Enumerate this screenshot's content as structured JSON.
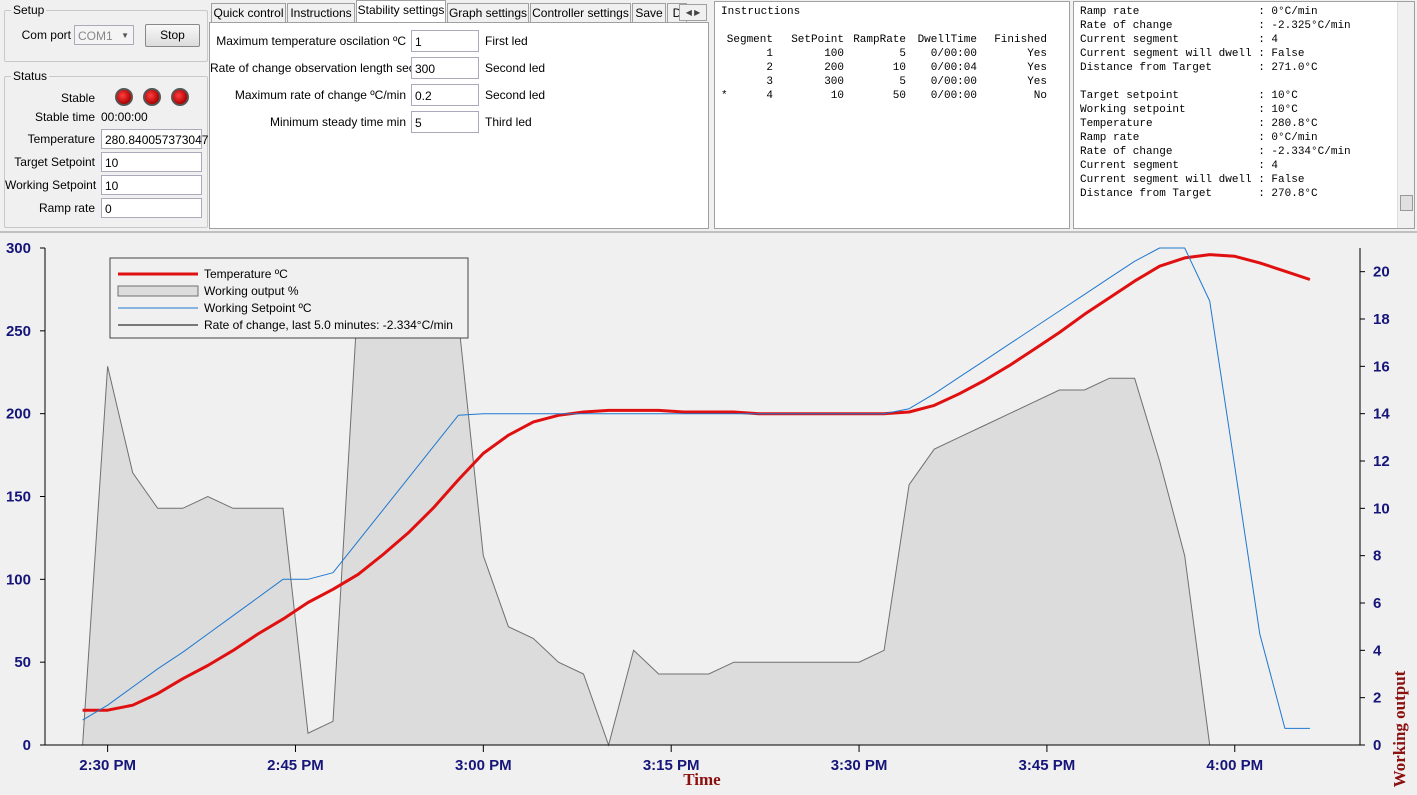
{
  "setup": {
    "title": "Setup",
    "com_port_label": "Com port",
    "com_port": "COM1",
    "button": "Stop"
  },
  "status": {
    "title": "Status",
    "stable_label": "Stable",
    "stable_time_label": "Stable time",
    "stable_time": "00:00:00",
    "fields": [
      {
        "label": "Temperature",
        "value": "280.840057373047"
      },
      {
        "label": "Target Setpoint",
        "value": "10"
      },
      {
        "label": "Working Setpoint",
        "value": "10"
      },
      {
        "label": "Ramp rate",
        "value": "0"
      }
    ]
  },
  "tabs": {
    "items": [
      "Quick control",
      "Instructions",
      "Stability settings",
      "Graph settings",
      "Controller settings",
      "Save",
      "D"
    ],
    "active": 2
  },
  "stability": {
    "rows": [
      {
        "label": "Maximum temperature oscilation ºC",
        "value": "1",
        "note": "First led"
      },
      {
        "label": "Rate of change observation length sec",
        "value": "300",
        "note": "Second led"
      },
      {
        "label": "Maximum rate of change ºC/min",
        "value": "0.2",
        "note": "Second led"
      },
      {
        "label": "Minimum steady time min",
        "value": "5",
        "note": "Third led"
      }
    ]
  },
  "instructions": {
    "title": "Instructions",
    "columns": [
      "Segment",
      "SetPoint",
      "RampRate",
      "DwellTime",
      "Finished"
    ],
    "rows": [
      {
        "cells": [
          1,
          100,
          5,
          "0/00:00",
          "Yes"
        ]
      },
      {
        "cells": [
          2,
          200,
          10,
          "0/00:04",
          "Yes"
        ]
      },
      {
        "cells": [
          3,
          300,
          5,
          "0/00:00",
          "Yes"
        ]
      },
      {
        "marker": "*",
        "cells": [
          4,
          10,
          50,
          "0/00:00",
          "No"
        ]
      }
    ]
  },
  "log": {
    "blocks": [
      [
        "Ramp rate                  : 0°C/min",
        "Rate of change             : -2.325°C/min",
        "Current segment            : 4",
        "Current segment will dwell : False",
        "Distance from Target       : 271.0°C"
      ],
      [
        "Target setpoint            : 10°C",
        "Working setpoint           : 10°C",
        "Temperature                : 280.8°C",
        "Ramp rate                  : 0°C/min",
        "Rate of change             : -2.334°C/min",
        "Current segment            : 4",
        "Current segment will dwell : False",
        "Distance from Target       : 270.8°C"
      ]
    ]
  },
  "chart_data": {
    "type": "line",
    "x_label": "Time",
    "y2_label": "Working output",
    "x": [
      "2:28 PM",
      "2:30 PM",
      "2:32 PM",
      "2:34 PM",
      "2:36 PM",
      "2:38 PM",
      "2:40 PM",
      "2:42 PM",
      "2:44 PM",
      "2:46 PM",
      "2:48 PM",
      "2:50 PM",
      "2:52 PM",
      "2:54 PM",
      "2:56 PM",
      "2:58 PM",
      "3:00 PM",
      "3:02 PM",
      "3:04 PM",
      "3:06 PM",
      "3:08 PM",
      "3:10 PM",
      "3:12 PM",
      "3:14 PM",
      "3:16 PM",
      "3:18 PM",
      "3:20 PM",
      "3:22 PM",
      "3:24 PM",
      "3:26 PM",
      "3:28 PM",
      "3:30 PM",
      "3:32 PM",
      "3:34 PM",
      "3:36 PM",
      "3:38 PM",
      "3:40 PM",
      "3:42 PM",
      "3:44 PM",
      "3:46 PM",
      "3:48 PM",
      "3:50 PM",
      "3:52 PM",
      "3:54 PM",
      "3:56 PM",
      "3:58 PM",
      "4:00 PM",
      "4:02 PM",
      "4:04 PM",
      "4:06 PM"
    ],
    "xlim": [
      "2:25 PM",
      "4:10 PM"
    ],
    "xticks": [
      "2:30 PM",
      "2:45 PM",
      "3:00 PM",
      "3:15 PM",
      "3:30 PM",
      "3:45 PM",
      "4:00 PM"
    ],
    "ylim": [
      0,
      300
    ],
    "yticks": [
      0,
      50,
      100,
      150,
      200,
      250,
      300
    ],
    "y2lim": [
      0,
      21
    ],
    "y2ticks": [
      0,
      2,
      4,
      6,
      8,
      10,
      12,
      14,
      16,
      18,
      20
    ],
    "legend": "top-left",
    "series": [
      {
        "name": "Temperature ºC",
        "color": "#e01010",
        "width": 3,
        "values": [
          21,
          21,
          24,
          31,
          40,
          48,
          57,
          67,
          76,
          86,
          94,
          103,
          115,
          128,
          143,
          160,
          176,
          187,
          195,
          199,
          201,
          202,
          202,
          202,
          201,
          201,
          201,
          200,
          200,
          200,
          200,
          200,
          200,
          201,
          205,
          212,
          220,
          229,
          239,
          249,
          260,
          270,
          280,
          289,
          294,
          296,
          295,
          291,
          286,
          281
        ]
      },
      {
        "name": "Working output %",
        "color": "#707070",
        "fill": "#dcdcdc",
        "area": true,
        "axis": "y2",
        "width": 1,
        "values": [
          0,
          16,
          11.5,
          10,
          10,
          10.5,
          10,
          10,
          10,
          0.5,
          1,
          19,
          17.5,
          17.5,
          19,
          18,
          8,
          5,
          4.5,
          3.5,
          3,
          0,
          4,
          3,
          3,
          3,
          3.5,
          3.5,
          3.5,
          3.5,
          3.5,
          3.5,
          4,
          11,
          12.5,
          13,
          13.5,
          14,
          14.5,
          15,
          15,
          15.5,
          15.5,
          12,
          8,
          0,
          null,
          null,
          null,
          null
        ]
      },
      {
        "name": "Working Setpoint ºC",
        "color": "#1f78d0",
        "width": 1,
        "values": [
          15,
          24,
          35,
          46,
          56,
          67,
          78,
          89,
          100,
          100,
          104,
          123,
          142,
          161,
          180,
          199,
          200,
          200,
          200,
          200,
          200,
          200,
          200,
          200,
          200,
          200,
          200,
          200,
          200,
          200,
          200,
          200,
          200,
          203,
          212,
          222,
          232,
          242,
          252,
          262,
          272,
          282,
          292,
          300,
          300,
          268,
          168,
          67,
          10,
          10
        ]
      },
      {
        "name": "Rate of change, last 5.0 minutes: -2.334°C/min",
        "color": "#000000",
        "width": 1,
        "values": [
          null,
          null,
          null,
          null,
          null,
          null,
          null,
          null,
          null,
          null,
          null,
          null,
          null,
          null,
          null,
          null,
          null,
          null,
          null,
          null,
          null,
          null,
          null,
          null,
          null,
          null,
          null,
          null,
          null,
          null,
          null,
          null,
          null,
          null,
          null,
          null,
          null,
          null,
          null,
          null,
          null,
          null,
          null,
          null,
          null,
          null,
          null,
          null,
          null,
          null
        ]
      }
    ]
  }
}
